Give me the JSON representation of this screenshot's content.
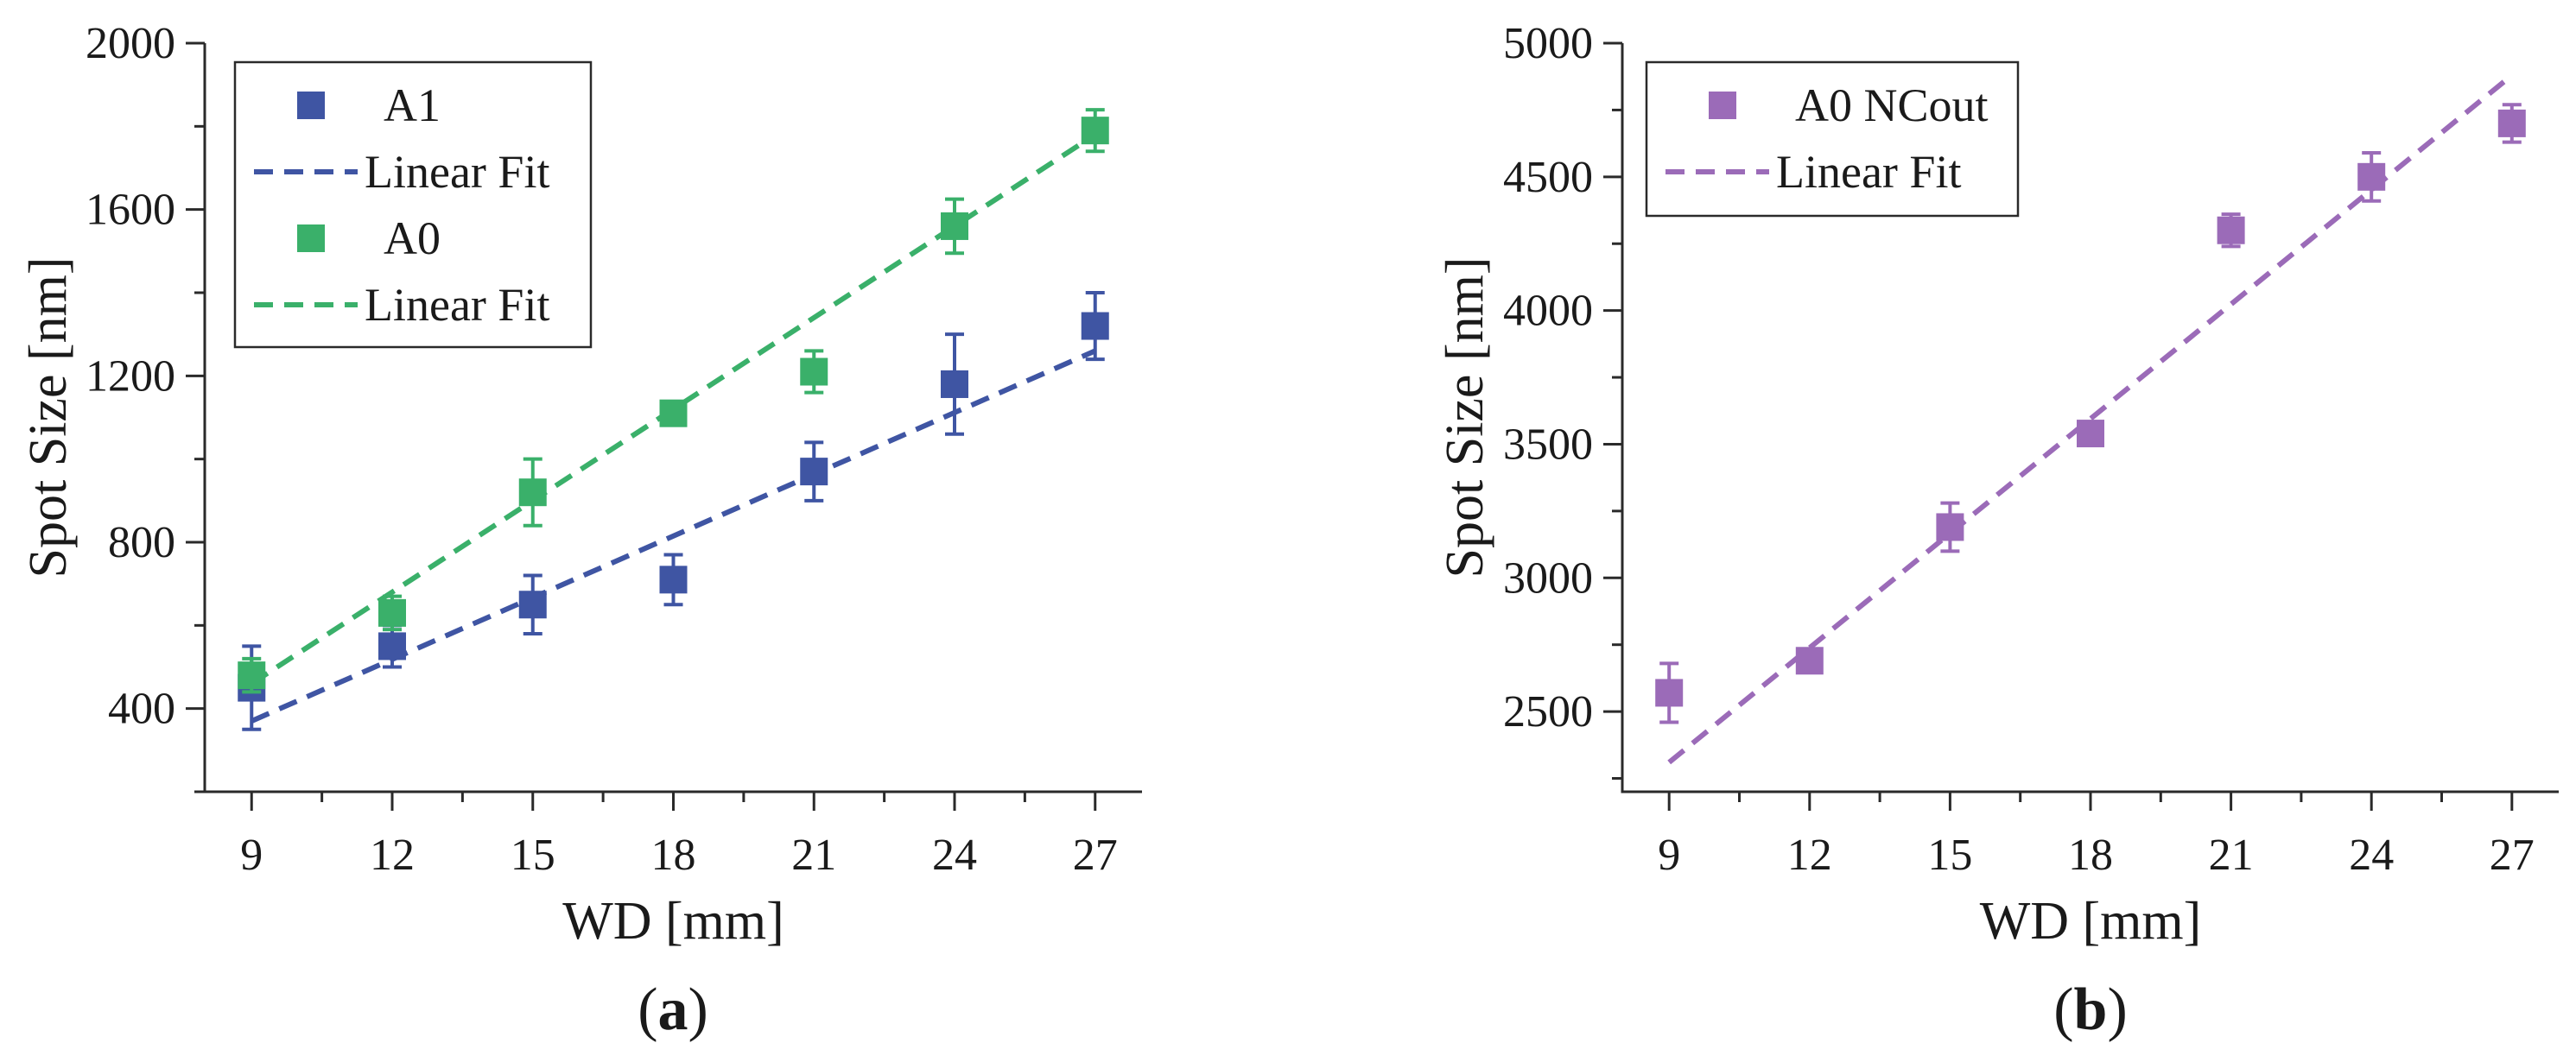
{
  "chart_data": [
    {
      "panel": "a",
      "type": "scatter",
      "xlabel": "WD [mm]",
      "ylabel": "Spot Size [nm]",
      "xlim": [
        8,
        28
      ],
      "ylim": [
        200,
        2000
      ],
      "xticks": [
        9,
        12,
        15,
        18,
        21,
        24,
        27
      ],
      "xtick_labels": [
        "9",
        "12",
        "15",
        "18",
        "21",
        "24",
        "27"
      ],
      "yticks": [
        400,
        800,
        1200,
        1600,
        2000
      ],
      "ytick_labels": [
        "400",
        "800",
        "1200",
        "1600",
        "2000"
      ],
      "series": [
        {
          "name": "A1",
          "color": "#3f55a3",
          "x": [
            9,
            12,
            15,
            18,
            21,
            24,
            27
          ],
          "y": [
            450,
            550,
            650,
            710,
            970,
            1180,
            1320
          ],
          "err": [
            100,
            50,
            70,
            60,
            70,
            120,
            80
          ],
          "fit_name": "Linear Fit",
          "fit": [
            [
              9,
              370
            ],
            [
              27,
              1260
            ]
          ]
        },
        {
          "name": "A0",
          "color": "#3ab06a",
          "x": [
            9,
            12,
            15,
            18,
            21,
            24,
            27
          ],
          "y": [
            480,
            630,
            920,
            1110,
            1210,
            1560,
            1790
          ],
          "err": [
            40,
            40,
            80,
            25,
            50,
            65,
            50
          ],
          "fit_name": "Linear Fit",
          "fit": [
            [
              9,
              460
            ],
            [
              27,
              1780
            ]
          ]
        }
      ],
      "legend": [
        "A1",
        "Linear Fit",
        "A0",
        "Linear Fit"
      ],
      "caption": "a"
    },
    {
      "panel": "b",
      "type": "scatter",
      "xlabel": "WD [mm]",
      "ylabel": "Spot Size [nm]",
      "xlim": [
        8,
        28
      ],
      "ylim": [
        2200,
        5000
      ],
      "xticks": [
        9,
        12,
        15,
        18,
        21,
        24,
        27
      ],
      "xtick_labels": [
        "9",
        "12",
        "15",
        "18",
        "21",
        "24",
        "27"
      ],
      "yticks": [
        2500,
        3000,
        3500,
        4000,
        4500,
        5000
      ],
      "ytick_labels": [
        "2500",
        "3000",
        "3500",
        "4000",
        "4500",
        "5000"
      ],
      "series": [
        {
          "name": "A0 NCout",
          "color": "#9b6bb8",
          "x": [
            9,
            12,
            15,
            18,
            21,
            24,
            27
          ],
          "y": [
            2570,
            2690,
            3190,
            3540,
            4300,
            4500,
            4700
          ],
          "err": [
            110,
            30,
            90,
            30,
            60,
            90,
            70
          ],
          "fit_name": "Linear Fit",
          "fit": [
            [
              9,
              2310
            ],
            [
              27,
              4880
            ]
          ]
        }
      ],
      "legend": [
        "A0 NCout",
        "Linear Fit"
      ],
      "caption": "b"
    }
  ]
}
